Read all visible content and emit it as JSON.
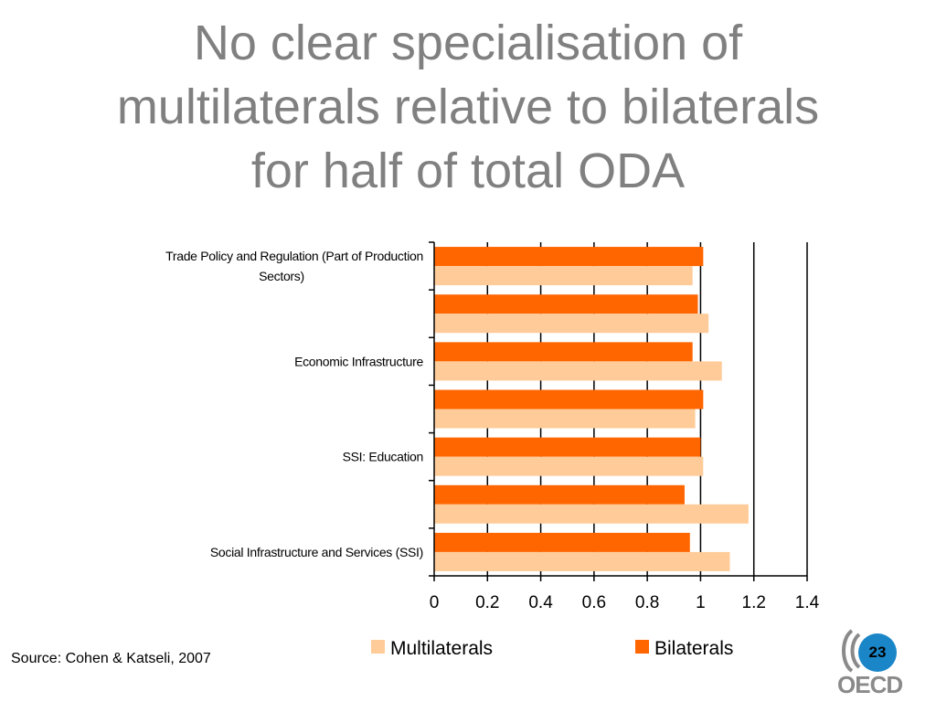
{
  "slide": {
    "title_lines": [
      "No clear specialisation of",
      "multilaterals relative to bilaterals",
      "for half of total ODA"
    ],
    "source": "Source: Cohen & Katseli, 2007",
    "page_number": "23",
    "logo_text": "OECD"
  },
  "colors": {
    "multilaterals": "#FFCC99",
    "bilaterals": "#FF6600",
    "title": "#808080",
    "badge": "#1a86c8"
  },
  "chart_data": {
    "type": "bar",
    "orientation": "horizontal",
    "categories": [
      [
        "Trade Policy and Regulation (Part of Production",
        "Sectors)"
      ],
      [
        ""
      ],
      [
        "Economic Infrastructure"
      ],
      [
        ""
      ],
      [
        "SSI: Education"
      ],
      [
        ""
      ],
      [
        "Social Infrastructure and Services (SSI)"
      ]
    ],
    "series": [
      {
        "name": "Bilaterals",
        "values": [
          1.01,
          0.99,
          0.97,
          1.01,
          1.0,
          0.94,
          0.96
        ]
      },
      {
        "name": "Multilaterals",
        "values": [
          0.97,
          1.03,
          1.08,
          0.98,
          1.01,
          1.18,
          1.11
        ]
      }
    ],
    "xlim": [
      0,
      1.4
    ],
    "xticks": [
      "0",
      "0.2",
      "0.4",
      "0.6",
      "0.8",
      "1",
      "1.2",
      "1.4"
    ],
    "grid": "vertical",
    "legend": {
      "position": "bottom",
      "items": [
        "Multilaterals",
        "Bilaterals"
      ]
    }
  }
}
